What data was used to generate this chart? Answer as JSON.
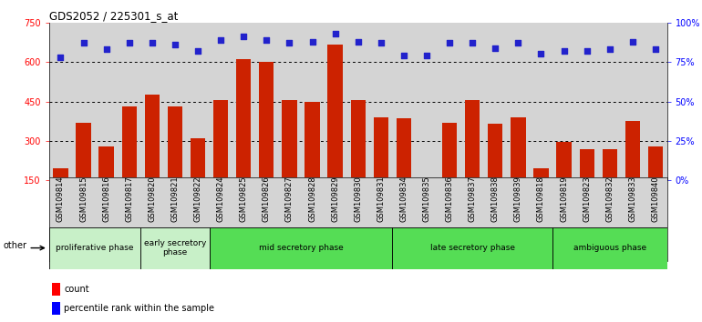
{
  "title": "GDS2052 / 225301_s_at",
  "samples": [
    "GSM109814",
    "GSM109815",
    "GSM109816",
    "GSM109817",
    "GSM109820",
    "GSM109821",
    "GSM109822",
    "GSM109824",
    "GSM109825",
    "GSM109826",
    "GSM109827",
    "GSM109828",
    "GSM109829",
    "GSM109830",
    "GSM109831",
    "GSM109834",
    "GSM109835",
    "GSM109836",
    "GSM109837",
    "GSM109838",
    "GSM109839",
    "GSM109818",
    "GSM109819",
    "GSM109823",
    "GSM109832",
    "GSM109833",
    "GSM109840"
  ],
  "counts": [
    195,
    370,
    280,
    430,
    475,
    430,
    310,
    455,
    610,
    600,
    455,
    450,
    665,
    455,
    390,
    385,
    160,
    370,
    455,
    365,
    390,
    195,
    295,
    270,
    270,
    375,
    280
  ],
  "percentile_pct": [
    78,
    87,
    83,
    87,
    87,
    86,
    82,
    89,
    91,
    89,
    87,
    88,
    93,
    88,
    87,
    79,
    79,
    87,
    87,
    84,
    87,
    80,
    82,
    82,
    83,
    88,
    83
  ],
  "phases": [
    {
      "label": "proliferative phase",
      "start": 0,
      "end": 4,
      "color": "#c8f0c8"
    },
    {
      "label": "early secretory\nphase",
      "start": 4,
      "end": 7,
      "color": "#c8f0c8"
    },
    {
      "label": "mid secretory phase",
      "start": 7,
      "end": 15,
      "color": "#55dd55"
    },
    {
      "label": "late secretory phase",
      "start": 15,
      "end": 22,
      "color": "#55dd55"
    },
    {
      "label": "ambiguous phase",
      "start": 22,
      "end": 27,
      "color": "#55dd55"
    }
  ],
  "ylim_lo": 150,
  "ylim_hi": 750,
  "yticks": [
    150,
    300,
    450,
    600,
    750
  ],
  "bar_color": "#cc2200",
  "dot_color": "#2222cc",
  "bg_color": "#d4d4d4",
  "right_ylim": [
    0,
    100
  ],
  "right_yticks": [
    0,
    25,
    50,
    75,
    100
  ],
  "right_yticklabels": [
    "0%",
    "25%",
    "50%",
    "75%",
    "100%"
  ]
}
